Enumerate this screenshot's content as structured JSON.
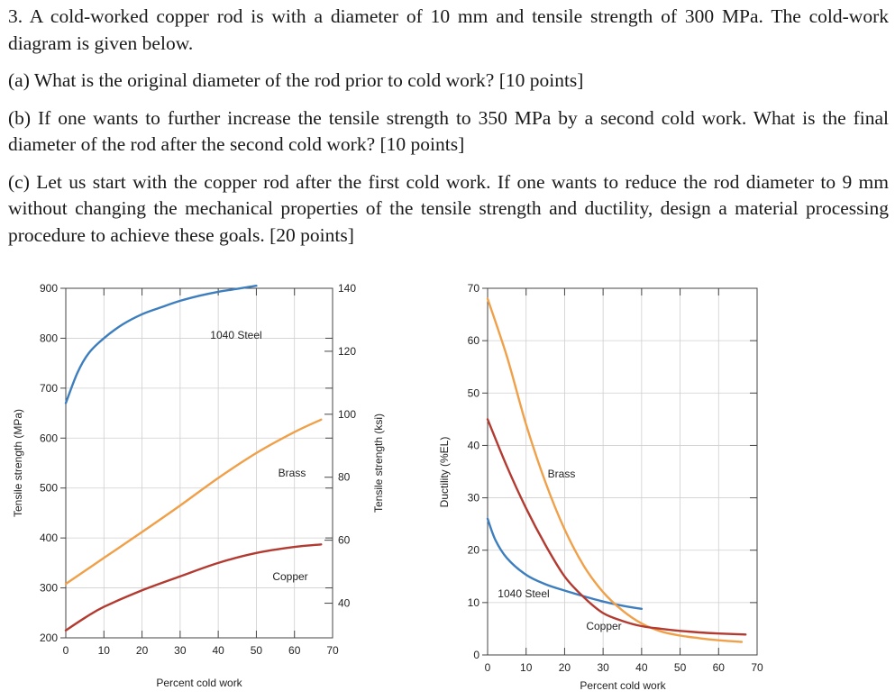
{
  "problem": {
    "intro": "3. A cold-worked copper rod is with a diameter of 10 mm and tensile strength of 300 MPa. The cold-work diagram is given below.",
    "part_a": "(a) What is the original diameter of the rod prior to cold work? [10 points]",
    "part_b": "(b) If one wants to further increase the tensile strength to 350 MPa by a second cold work. What is the final diameter of the rod after the second cold work? [10 points]",
    "part_c": "(c) Let us start with the copper rod after the first cold work. If one wants to reduce the rod diameter to 9 mm without changing the mechanical properties of the tensile strength and ductility, design a material processing procedure to achieve these goals. [20 points]"
  },
  "colors": {
    "steel": "#3d7ebf",
    "brass": "#f0a048",
    "copper": "#b23a30"
  },
  "chart_data": [
    {
      "type": "line",
      "title": "",
      "xlabel": "Percent cold work",
      "ylabel": "Tensile strength (MPa)",
      "y2label": "Tensile strength (ksi)",
      "xlim": [
        0,
        70
      ],
      "ylim": [
        200,
        900
      ],
      "y2lim": [
        29,
        140
      ],
      "xticks": [
        "0",
        "10",
        "20",
        "30",
        "40",
        "50",
        "60",
        "70"
      ],
      "yticks": [
        "200",
        "300",
        "400",
        "500",
        "600",
        "700",
        "800",
        "900"
      ],
      "y2ticks": [
        "40",
        "60",
        "80",
        "100",
        "120",
        "140"
      ],
      "series": [
        {
          "name": "1040 Steel",
          "color": "steel",
          "x": [
            0,
            3,
            6,
            10,
            15,
            20,
            25,
            30,
            35,
            40,
            45,
            50
          ],
          "y": [
            670,
            730,
            770,
            800,
            828,
            848,
            862,
            875,
            885,
            893,
            899,
            905
          ]
        },
        {
          "name": "Brass",
          "color": "brass",
          "x": [
            0,
            10,
            20,
            30,
            40,
            50,
            60,
            67
          ],
          "y": [
            308,
            360,
            412,
            465,
            520,
            570,
            612,
            637
          ]
        },
        {
          "name": "Copper",
          "color": "copper",
          "x": [
            0,
            5,
            10,
            20,
            30,
            40,
            50,
            60,
            67
          ],
          "y": [
            215,
            240,
            262,
            295,
            323,
            350,
            370,
            382,
            387
          ]
        }
      ]
    },
    {
      "type": "line",
      "title": "",
      "xlabel": "Percent cold work",
      "ylabel": "Ductility (%EL)",
      "xlim": [
        0,
        70
      ],
      "ylim": [
        0,
        70
      ],
      "xticks": [
        "0",
        "10",
        "20",
        "30",
        "40",
        "50",
        "60",
        "70"
      ],
      "yticks": [
        "0",
        "10",
        "20",
        "30",
        "40",
        "50",
        "60",
        "70"
      ],
      "series": [
        {
          "name": "1040 Steel",
          "color": "steel",
          "x": [
            0,
            2,
            5,
            10,
            15,
            20,
            25,
            30,
            35,
            40
          ],
          "y": [
            26,
            22,
            18.5,
            15.3,
            13.5,
            12.3,
            11.2,
            10.2,
            9.4,
            8.8
          ]
        },
        {
          "name": "Brass",
          "color": "brass",
          "x": [
            0,
            5,
            10,
            15,
            20,
            25,
            30,
            35,
            40,
            45,
            50,
            55,
            60,
            66
          ],
          "y": [
            68,
            57,
            44,
            33,
            24,
            17,
            12,
            8.5,
            6,
            4.5,
            3.7,
            3.2,
            2.8,
            2.5
          ]
        },
        {
          "name": "Copper",
          "color": "copper",
          "x": [
            0,
            5,
            10,
            15,
            20,
            25,
            30,
            35,
            40,
            45,
            50,
            55,
            60,
            67
          ],
          "y": [
            45,
            36,
            28,
            21,
            15,
            11,
            8,
            6.5,
            5.5,
            5,
            4.6,
            4.3,
            4.1,
            3.9
          ]
        }
      ]
    }
  ]
}
